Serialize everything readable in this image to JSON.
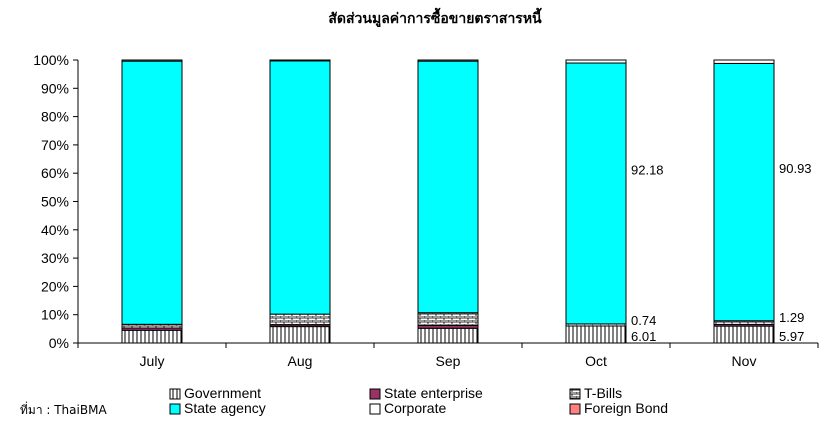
{
  "chart_data": {
    "type": "bar",
    "stacked": true,
    "percent": true,
    "title": "สัดส่วนมูลค่าการซื้อขายตราสารหนี้",
    "xlabel": "",
    "ylabel": "",
    "ylim": [
      0,
      100
    ],
    "y_ticks": [
      "0%",
      "10%",
      "20%",
      "30%",
      "40%",
      "50%",
      "60%",
      "70%",
      "80%",
      "90%",
      "100%"
    ],
    "categories": [
      "July",
      "Aug",
      "Sep",
      "Oct",
      "Nov"
    ],
    "series": [
      {
        "name": "Government",
        "color": "#ffffff",
        "pattern": "vertical-lines",
        "values": [
          4.5,
          5.8,
          5.2,
          6.01,
          5.97
        ]
      },
      {
        "name": "State enterprise",
        "color": "#993366",
        "values": [
          0.8,
          0.6,
          1.0,
          0.0,
          0.6
        ]
      },
      {
        "name": "T-Bills",
        "color": "#ffffff",
        "pattern": "brick",
        "values": [
          1.3,
          3.8,
          4.5,
          0.74,
          1.29
        ]
      },
      {
        "name": "State agency",
        "color": "#00ffff",
        "values": [
          93.0,
          89.5,
          88.9,
          92.18,
          90.93
        ]
      },
      {
        "name": "Corporate",
        "color": "#ffffff",
        "values": [
          0.4,
          0.3,
          0.4,
          1.07,
          1.21
        ]
      },
      {
        "name": "Foreign Bond",
        "color": "#ff8080",
        "values": [
          0,
          0,
          0,
          0,
          0
        ]
      }
    ],
    "data_labels": [
      {
        "category": "Oct",
        "series": "Government",
        "text": "6.01"
      },
      {
        "category": "Oct",
        "series": "T-Bills",
        "text": "0.74"
      },
      {
        "category": "Oct",
        "series": "State agency",
        "text": "92.18"
      },
      {
        "category": "Nov",
        "series": "Government",
        "text": "5.97"
      },
      {
        "category": "Nov",
        "series": "T-Bills",
        "text": "1.29"
      },
      {
        "category": "Nov",
        "series": "State agency",
        "text": "90.93"
      }
    ],
    "legend_position": "bottom",
    "grid": false
  },
  "source_label": "ที่มา : ThaiBMA"
}
